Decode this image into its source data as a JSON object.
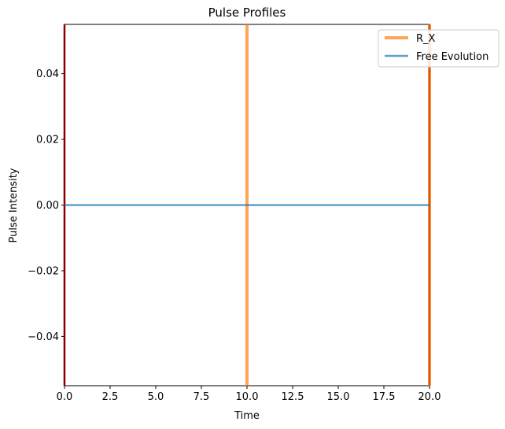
{
  "chart_data": {
    "type": "line",
    "title": "Pulse Profiles",
    "xlabel": "Time",
    "ylabel": "Pulse Intensity",
    "xlim": [
      0,
      20
    ],
    "ylim": [
      -0.055,
      0.055
    ],
    "xticks": [
      0,
      2.5,
      5,
      7.5,
      10,
      12.5,
      15,
      17.5,
      20
    ],
    "xtick_labels": [
      "0.0",
      "2.5",
      "5.0",
      "7.5",
      "10.0",
      "12.5",
      "15.0",
      "17.5",
      "20.0"
    ],
    "yticks": [
      -0.04,
      -0.02,
      0,
      0.02,
      0.04
    ],
    "ytick_labels": [
      "−0.04",
      "−0.02",
      "0.00",
      "0.02",
      "0.04"
    ],
    "grid": false,
    "legend_position": "top-right",
    "series": [
      {
        "name": "R_X",
        "color": "#ff7f0e",
        "x": [
          10,
          20
        ],
        "y": [
          0,
          0
        ],
        "style": "vertical pulse spikes at t=10 and t=20"
      },
      {
        "name": "Free Evolution",
        "color": "#1f77b4",
        "x": [
          0,
          20
        ],
        "y": [
          0,
          0
        ]
      }
    ],
    "edge_marker_color": "#8b0000"
  }
}
